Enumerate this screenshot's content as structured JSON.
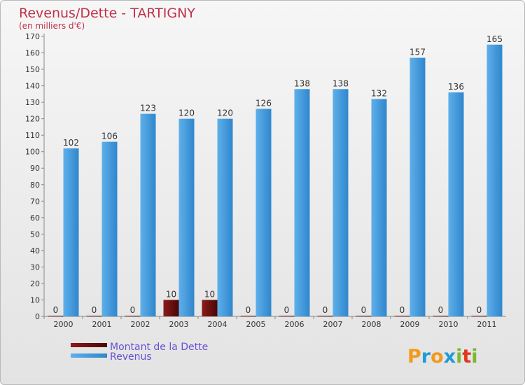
{
  "chart_data": {
    "type": "bar",
    "title": "Revenus/Dette - TARTIGNY",
    "subtitle": "(en milliers d'€)",
    "categories": [
      "2000",
      "2001",
      "2002",
      "2003",
      "2004",
      "2005",
      "2006",
      "2007",
      "2008",
      "2009",
      "2010",
      "2011"
    ],
    "series": [
      {
        "name": "Montant de la Dette",
        "color": "#6e1010",
        "values": [
          0,
          0,
          0,
          10,
          10,
          0,
          0,
          0,
          0,
          0,
          0,
          0
        ]
      },
      {
        "name": "Revenus",
        "color": "#4aa0e0",
        "values": [
          102,
          106,
          123,
          120,
          120,
          126,
          138,
          138,
          132,
          157,
          136,
          165
        ]
      }
    ],
    "ylim": [
      0,
      170
    ],
    "yticks": [
      0,
      10,
      20,
      30,
      40,
      50,
      60,
      70,
      80,
      90,
      100,
      110,
      120,
      130,
      140,
      150,
      160,
      170
    ],
    "grid": false,
    "legend": "bottom-left",
    "xlabel": "",
    "ylabel": ""
  },
  "branding": {
    "logo_letters": [
      "P",
      "r",
      "o",
      "x",
      "i",
      "t",
      "i"
    ],
    "logo_colors": [
      "#f29a1c",
      "#1f9bd8",
      "#f29a1c",
      "#1f9bd8",
      "#7cb82f",
      "#e4351f",
      "#7cb82f"
    ]
  }
}
